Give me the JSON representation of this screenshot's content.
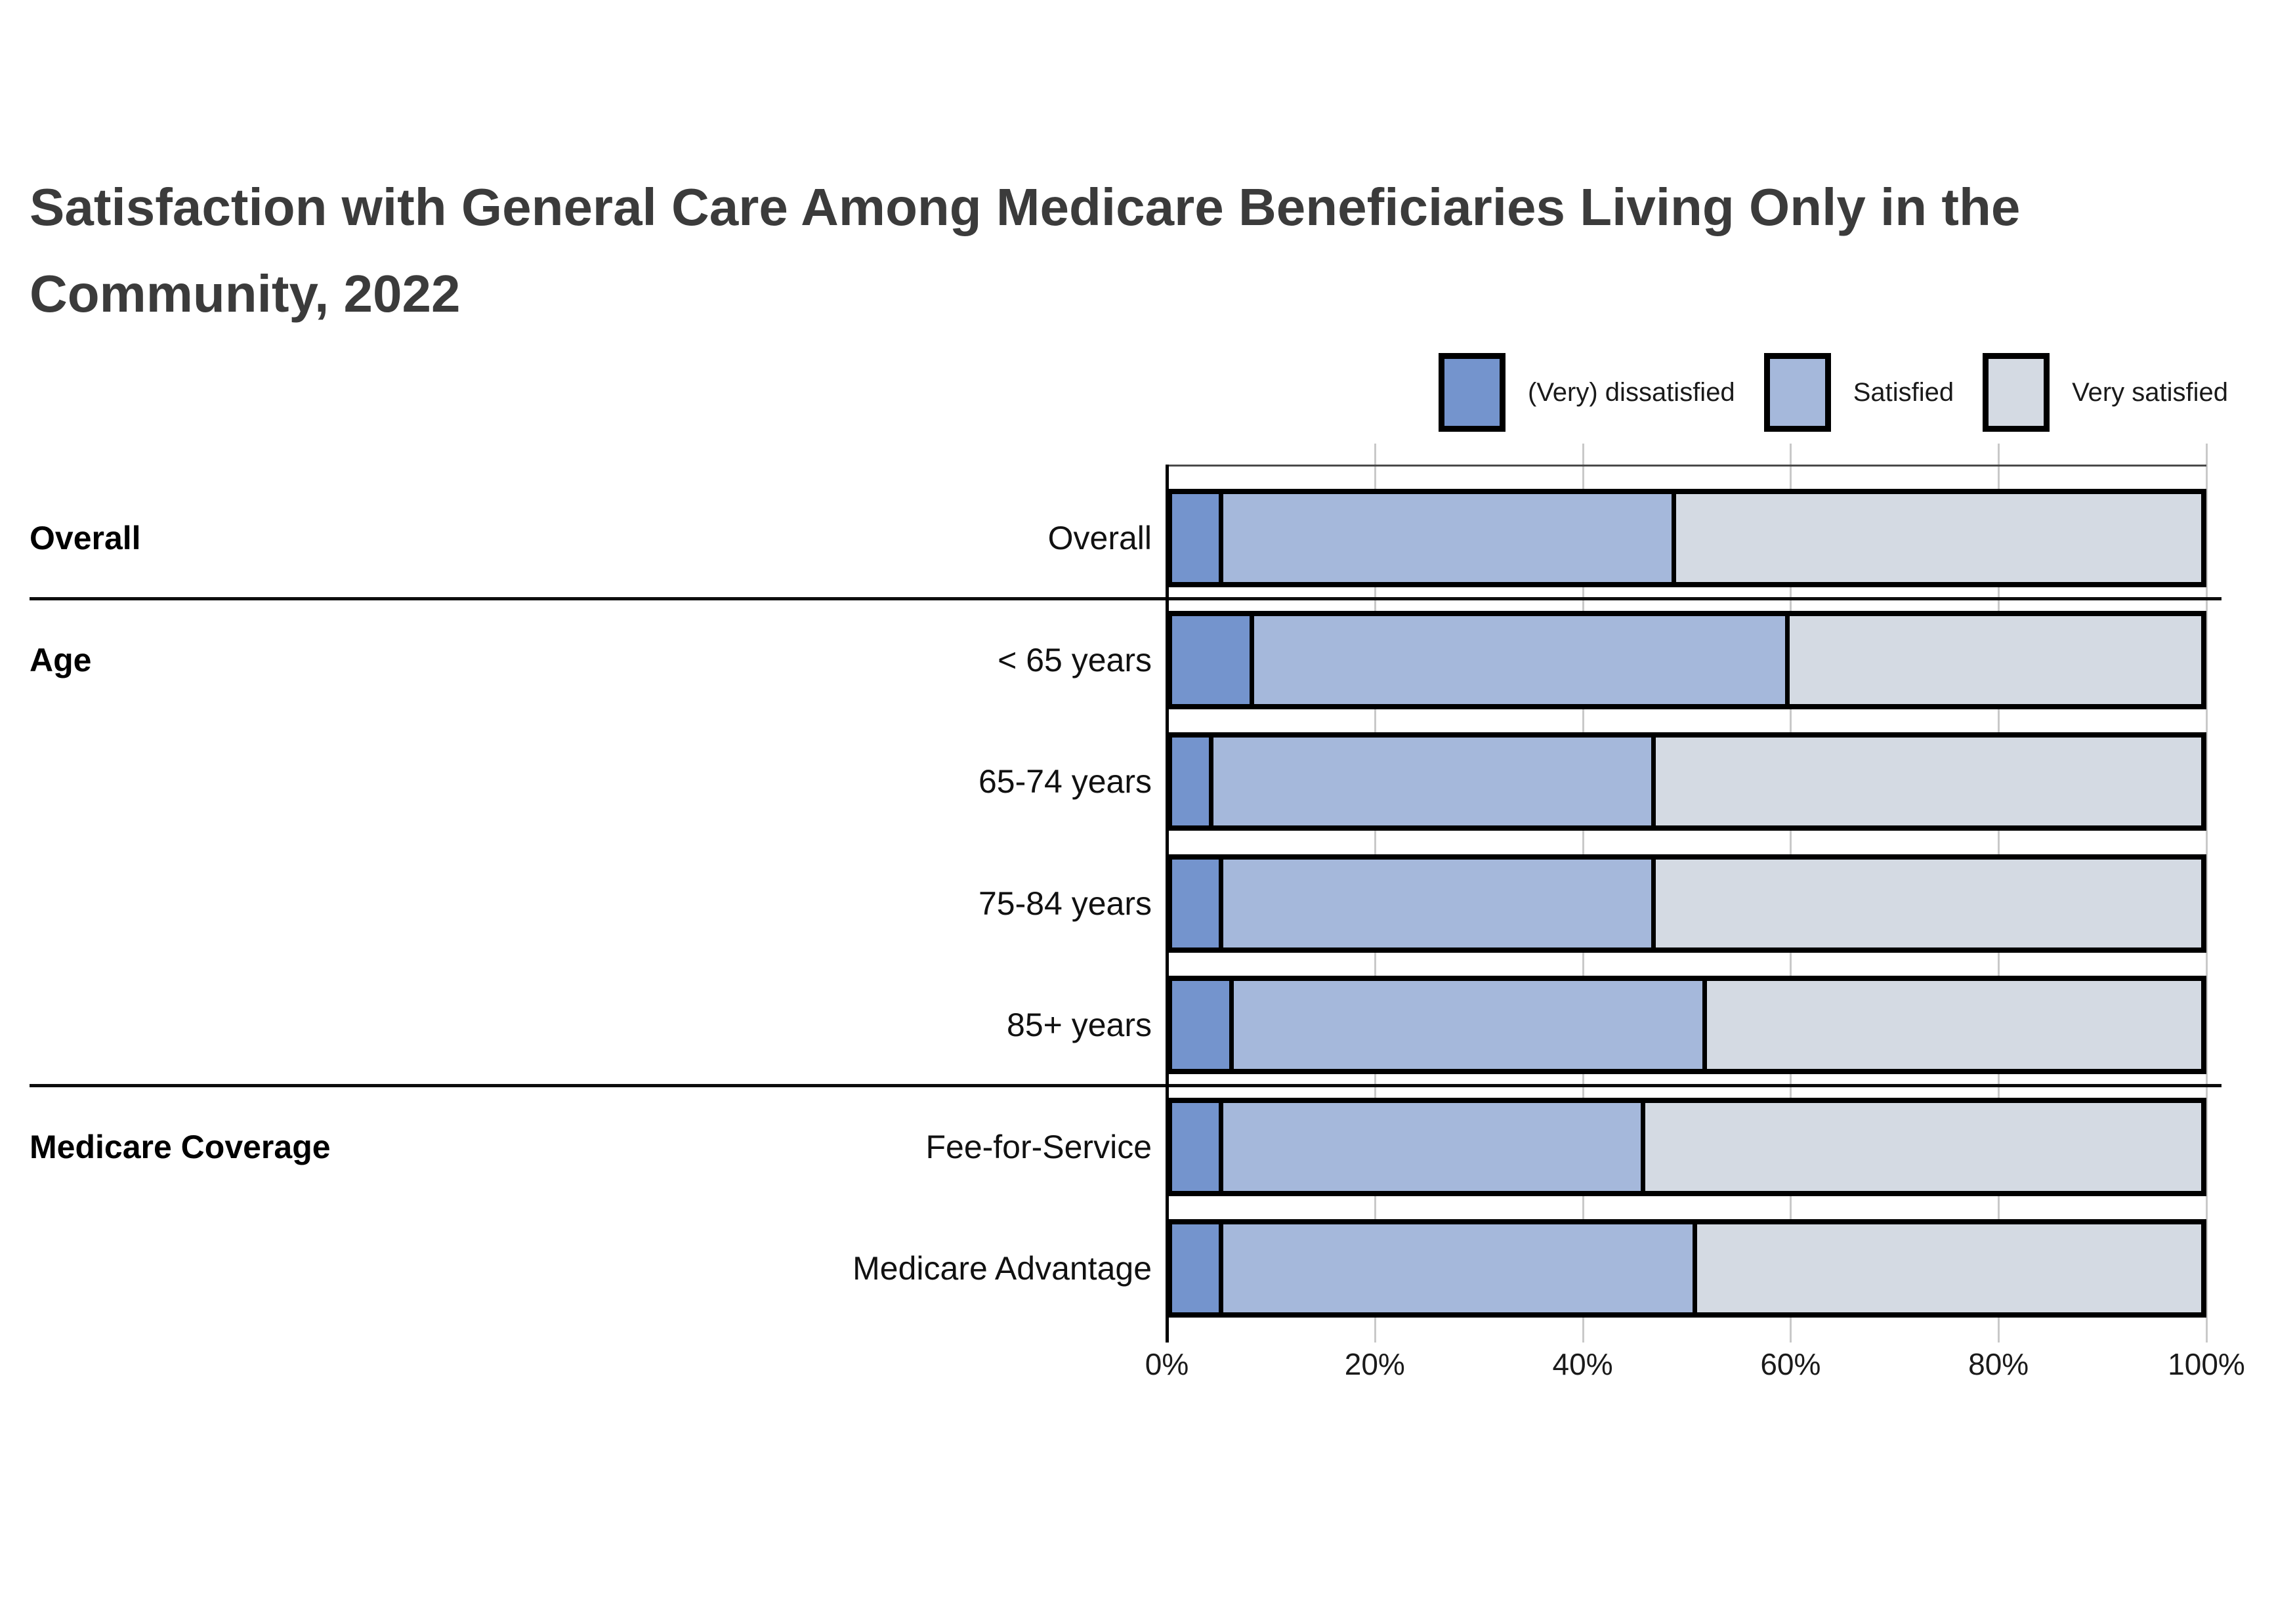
{
  "title": "Satisfaction with General Care Among Medicare Beneficiaries Living Only in the Community, 2022",
  "legend": [
    {
      "label": "(Very) dissatisfied",
      "color": "#7494CD"
    },
    {
      "label": "Satisfied",
      "color": "#A5B8DB"
    },
    {
      "label": "Very satisfied",
      "color": "#D4DAE3"
    }
  ],
  "x_axis": {
    "tick_labels": [
      "0%",
      "20%",
      "40%",
      "60%",
      "80%",
      "100%"
    ],
    "min": 0,
    "max": 100
  },
  "groups": [
    {
      "label": "Overall",
      "rows": [
        "Overall"
      ]
    },
    {
      "label": "Age",
      "rows": [
        "< 65 years",
        "65-74 years",
        "75-84 years",
        "85+ years"
      ]
    },
    {
      "label": "Medicare Coverage",
      "rows": [
        "Fee-for-Service",
        "Medicare Advantage"
      ]
    }
  ],
  "chart_data": {
    "type": "bar",
    "variant": "horizontal-stacked-100pct",
    "title": "Satisfaction with General Care Among Medicare Beneficiaries Living Only in the Community, 2022",
    "categories": [
      "Overall",
      "< 65 years",
      "65-74 years",
      "75-84 years",
      "85+ years",
      "Fee-for-Service",
      "Medicare Advantage"
    ],
    "category_groups": [
      "Overall",
      "Age",
      "Age",
      "Age",
      "Age",
      "Medicare Coverage",
      "Medicare Coverage"
    ],
    "series": [
      {
        "name": "(Very) dissatisfied",
        "color": "#7494CD",
        "values": [
          5,
          8,
          4,
          5,
          6,
          5,
          5
        ]
      },
      {
        "name": "Satisfied",
        "color": "#A5B8DB",
        "values": [
          44,
          52,
          43,
          42,
          46,
          41,
          46
        ]
      },
      {
        "name": "Very satisfied",
        "color": "#D4DAE3",
        "values": [
          51,
          40,
          53,
          53,
          48,
          54,
          49
        ]
      }
    ],
    "units": "percent",
    "xlabel": "",
    "ylabel": "",
    "xlim": [
      0,
      100
    ],
    "x_tick_labels": [
      "0%",
      "20%",
      "40%",
      "60%",
      "80%",
      "100%"
    ],
    "grid": "vertical",
    "legend_position": "top-right",
    "bar_border_color": "#000000",
    "background": "#ffffff"
  }
}
